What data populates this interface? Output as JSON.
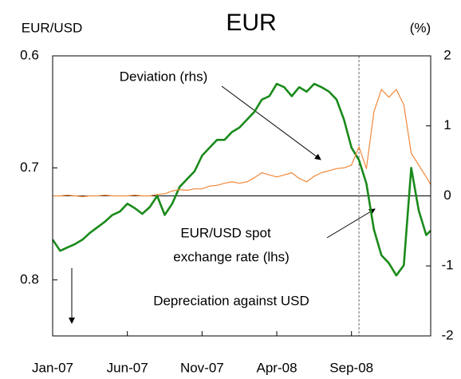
{
  "chart_data": {
    "type": "line",
    "title": "EUR",
    "y_axis_label": "EUR/USD",
    "y2_axis_label": "(%)",
    "annotations": [
      "Deviation (rhs)",
      "EUR/USD spot",
      "exchange rate (lhs)",
      "Depreciation against USD"
    ],
    "x": [
      0,
      0.5,
      1,
      1.5,
      2,
      2.5,
      3,
      3.5,
      4,
      4.5,
      5,
      5.5,
      6,
      6.5,
      7,
      7.5,
      8,
      8.5,
      9,
      9.5,
      10,
      10.5,
      11,
      11.5,
      12,
      12.5,
      13,
      13.5,
      14,
      14.5,
      15,
      15.5,
      16,
      16.5,
      17,
      17.5,
      18,
      18.5,
      19,
      19.5,
      20,
      20.5,
      21,
      21.5,
      22,
      22.5,
      23,
      23.5,
      24,
      24.5,
      25,
      25.3
    ],
    "xlim": [
      0,
      25.3
    ],
    "xticks": [
      {
        "value": 0,
        "label": "Jan-07"
      },
      {
        "value": 5,
        "label": "Jun-07"
      },
      {
        "value": 10,
        "label": "Nov-07"
      },
      {
        "value": 15,
        "label": "Apr-08"
      },
      {
        "value": 20,
        "label": "Sep-08"
      }
    ],
    "ylim": [
      0.6,
      0.85
    ],
    "yticks": [
      0.6,
      0.7,
      0.8
    ],
    "y_inverted": true,
    "y2lim": [
      -2,
      2
    ],
    "y2ticks": [
      -2,
      -1,
      0,
      1,
      2
    ],
    "vline_x": 20.5,
    "hline_y2": 0,
    "series": [
      {
        "name": "EUR/USD spot exchange rate (lhs)",
        "color": "#1a8a1a",
        "axis": "y",
        "values": [
          0.764,
          0.774,
          0.771,
          0.768,
          0.764,
          0.758,
          0.753,
          0.748,
          0.742,
          0.739,
          0.732,
          0.736,
          0.741,
          0.735,
          0.725,
          0.742,
          0.732,
          0.717,
          0.71,
          0.703,
          0.689,
          0.682,
          0.675,
          0.675,
          0.668,
          0.664,
          0.657,
          0.65,
          0.639,
          0.636,
          0.625,
          0.628,
          0.636,
          0.628,
          0.632,
          0.625,
          0.628,
          0.632,
          0.639,
          0.657,
          0.682,
          0.693,
          0.714,
          0.755,
          0.778,
          0.785,
          0.796,
          0.787,
          0.7,
          0.738,
          0.76,
          0.756
        ]
      },
      {
        "name": "Deviation (rhs)",
        "color": "#f0883a",
        "axis": "y2",
        "values": [
          0,
          0,
          0.01,
          0,
          -0.01,
          0,
          0,
          0.01,
          0,
          0,
          0,
          0.01,
          0,
          0,
          0.02,
          0.03,
          0.07,
          0.09,
          0.08,
          0.1,
          0.1,
          0.14,
          0.15,
          0.18,
          0.2,
          0.18,
          0.2,
          0.26,
          0.33,
          0.3,
          0.27,
          0.3,
          0.33,
          0.25,
          0.2,
          0.28,
          0.33,
          0.36,
          0.39,
          0.4,
          0.44,
          0.7,
          0.39,
          1.2,
          1.52,
          1.41,
          1.52,
          1.3,
          0.61,
          0.44,
          0.27,
          0.16
        ]
      }
    ]
  }
}
